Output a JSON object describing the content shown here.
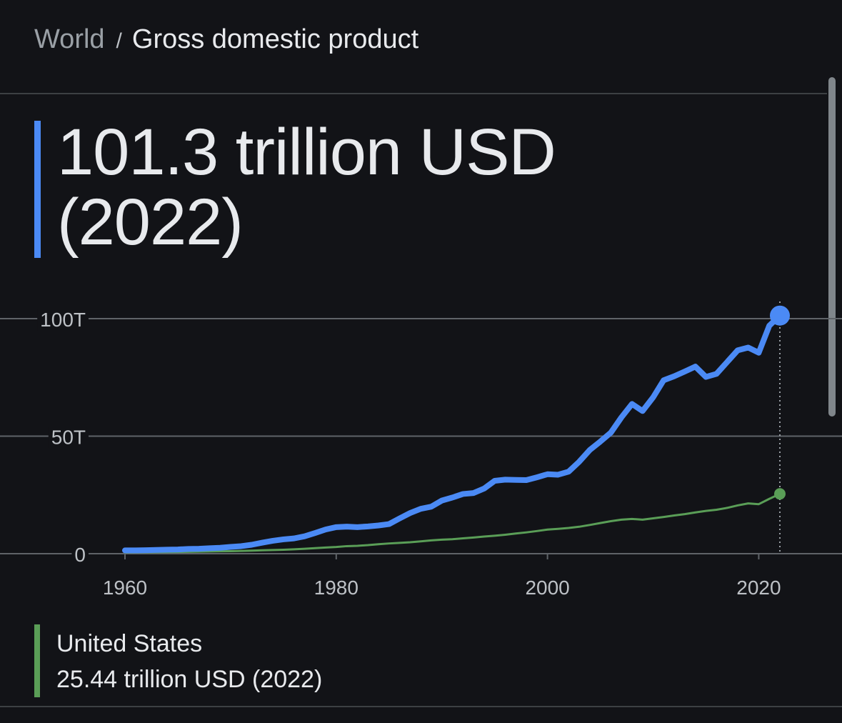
{
  "breadcrumb": {
    "parent": "World",
    "separator": "/",
    "current": "Gross domestic product"
  },
  "headline": {
    "value": "101.3 trillion USD",
    "year": "(2022)",
    "accent_color": "#4b8af5"
  },
  "legend": {
    "name": "United States",
    "value": "25.44 trillion USD (2022)",
    "color": "#5a9e57"
  },
  "chart_data": {
    "type": "line",
    "x_ticks": [
      "1960",
      "1980",
      "2000",
      "2020"
    ],
    "y_ticks": [
      "100T",
      "50T",
      "0"
    ],
    "xlim": [
      1960,
      2022
    ],
    "ylim": [
      0,
      100
    ],
    "y_unit": "trillion USD",
    "grid": "horizontal",
    "x": [
      1960,
      1961,
      1962,
      1963,
      1964,
      1965,
      1966,
      1967,
      1968,
      1969,
      1970,
      1971,
      1972,
      1973,
      1974,
      1975,
      1976,
      1977,
      1978,
      1979,
      1980,
      1981,
      1982,
      1983,
      1984,
      1985,
      1986,
      1987,
      1988,
      1989,
      1990,
      1991,
      1992,
      1993,
      1994,
      1995,
      1996,
      1997,
      1998,
      1999,
      2000,
      2001,
      2002,
      2003,
      2004,
      2005,
      2006,
      2007,
      2008,
      2009,
      2010,
      2011,
      2012,
      2013,
      2014,
      2015,
      2016,
      2017,
      2018,
      2019,
      2020,
      2021,
      2022
    ],
    "series": [
      {
        "color": "#4b8af5",
        "values": [
          1.4,
          1.4,
          1.5,
          1.6,
          1.7,
          1.8,
          2.0,
          2.1,
          2.3,
          2.5,
          2.9,
          3.2,
          3.8,
          4.7,
          5.5,
          6.1,
          6.5,
          7.4,
          8.8,
          10.3,
          11.3,
          11.5,
          11.3,
          11.6,
          12.0,
          12.6,
          15.0,
          17.3,
          19.1,
          20.0,
          22.6,
          23.9,
          25.4,
          25.8,
          27.7,
          31.0,
          31.5,
          31.4,
          31.3,
          32.5,
          33.8,
          33.6,
          34.9,
          39.1,
          44.1,
          47.7,
          51.5,
          58.0,
          63.7,
          60.7,
          66.5,
          73.8,
          75.5,
          77.5,
          79.6,
          75.2,
          76.5,
          81.5,
          86.5,
          87.7,
          85.5,
          97.0,
          101.3
        ]
      },
      {
        "name": "United States",
        "color": "#5a9e57",
        "values": [
          0.54,
          0.56,
          0.6,
          0.64,
          0.69,
          0.74,
          0.81,
          0.86,
          0.94,
          1.02,
          1.07,
          1.16,
          1.28,
          1.43,
          1.55,
          1.69,
          1.88,
          2.09,
          2.36,
          2.63,
          2.86,
          3.21,
          3.35,
          3.64,
          4.04,
          4.35,
          4.59,
          4.87,
          5.25,
          5.66,
          5.96,
          6.16,
          6.52,
          6.86,
          7.29,
          7.64,
          8.07,
          8.58,
          9.06,
          9.63,
          10.25,
          10.58,
          10.94,
          11.46,
          12.22,
          13.04,
          13.82,
          14.47,
          14.77,
          14.48,
          15.05,
          15.6,
          16.25,
          16.84,
          17.55,
          18.21,
          18.7,
          19.48,
          20.53,
          21.38,
          21.06,
          23.32,
          25.44
        ]
      }
    ],
    "reference_line_x": 2022
  }
}
